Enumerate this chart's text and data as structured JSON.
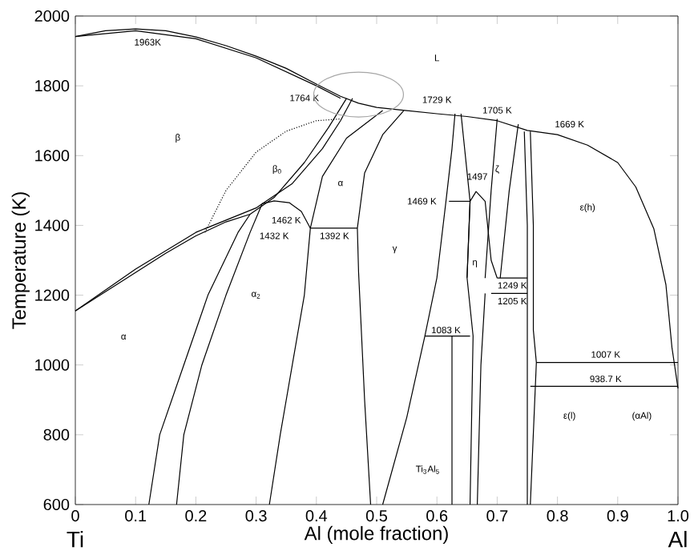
{
  "chart_data": {
    "type": "line",
    "xlabel": "Al (mole fraction)",
    "ylabel": "Temperature (K)",
    "xlim": [
      0,
      1
    ],
    "ylim": [
      600,
      2000
    ],
    "xticks": [
      0,
      0.1,
      0.2,
      0.3,
      0.4,
      0.5,
      0.6,
      0.7,
      0.8,
      0.9,
      {
        "value": 1,
        "label": "1.0"
      }
    ],
    "yticks": [
      600,
      800,
      1000,
      1200,
      1400,
      1600,
      1800,
      2000
    ],
    "marker": "none",
    "line_style": "solid",
    "grid": false,
    "legend": false,
    "series": [
      {
        "color": "#000000",
        "x": [
          0,
          0.05,
          0.1,
          0.15,
          0.2,
          0.25,
          0.3,
          0.35,
          0.4,
          0.44,
          0.47,
          0.5,
          0.55,
          0.6,
          0.65,
          0.7,
          0.75,
          0.8,
          0.85,
          0.9,
          0.93,
          0.96,
          0.98,
          0.99,
          1.0
        ],
        "values": [
          1941,
          1958,
          1963,
          1958,
          1940,
          1915,
          1885,
          1850,
          1805,
          1770,
          1750,
          1738,
          1729,
          1720,
          1712,
          1700,
          1672,
          1660,
          1630,
          1580,
          1510,
          1390,
          1230,
          1050,
          933
        ]
      },
      {
        "color": "#000000",
        "x": [
          0,
          0.1,
          0.2,
          0.3,
          0.4,
          0.44
        ],
        "values": [
          1941,
          1958,
          1935,
          1880,
          1800,
          1764
        ]
      },
      {
        "color": "#000000",
        "line_style": "dotted",
        "x": [
          0.215,
          0.25,
          0.3,
          0.35,
          0.4,
          0.44
        ],
        "values": [
          1380,
          1500,
          1610,
          1670,
          1700,
          1705
        ]
      },
      {
        "color": "#000000",
        "x": [
          0,
          0.05,
          0.1,
          0.15,
          0.2,
          0.25,
          0.29,
          0.33,
          0.38,
          0.42,
          0.45
        ],
        "values": [
          1155,
          1210,
          1265,
          1320,
          1370,
          1410,
          1432,
          1480,
          1580,
          1680,
          1764
        ]
      },
      {
        "color": "#000000",
        "x": [
          0,
          0.1,
          0.2,
          0.3,
          0.31,
          0.36,
          0.41,
          0.44,
          0.46
        ],
        "values": [
          1155,
          1275,
          1380,
          1450,
          1462,
          1520,
          1620,
          1700,
          1764
        ]
      },
      {
        "color": "#000000",
        "x": [
          0.122,
          0.14,
          0.18,
          0.22,
          0.27,
          0.29
        ],
        "values": [
          600,
          800,
          1000,
          1200,
          1380,
          1432
        ]
      },
      {
        "color": "#000000",
        "x": [
          0.168,
          0.18,
          0.21,
          0.25,
          0.29,
          0.31,
          0.33,
          0.355,
          0.375,
          0.39
        ],
        "values": [
          600,
          800,
          1000,
          1200,
          1380,
          1462,
          1470,
          1465,
          1440,
          1392
        ]
      },
      {
        "color": "#000000",
        "x": [
          0.322,
          0.34,
          0.36,
          0.38,
          0.39,
          0.41,
          0.45,
          0.51
        ],
        "values": [
          600,
          800,
          1000,
          1200,
          1392,
          1540,
          1650,
          1729
        ]
      },
      {
        "color": "#000000",
        "x": [
          0.49,
          0.48,
          0.47,
          0.468,
          0.48,
          0.51,
          0.545
        ],
        "values": [
          600,
          900,
          1266,
          1392,
          1550,
          1660,
          1729
        ]
      },
      {
        "color": "#000000",
        "x": [
          0.51,
          0.55,
          0.58,
          0.6,
          0.615,
          0.625,
          0.63
        ],
        "values": [
          600,
          850,
          1083,
          1250,
          1469,
          1620,
          1720
        ]
      },
      {
        "color": "#000000",
        "x": [
          0.39,
          0.468
        ],
        "values": [
          1392,
          1392
        ]
      },
      {
        "color": "#000000",
        "x": [
          0.625,
          0.625
        ],
        "values": [
          600,
          1083
        ]
      },
      {
        "color": "#000000",
        "x": [
          0.58,
          0.655
        ],
        "values": [
          1083,
          1083
        ]
      },
      {
        "color": "#000000",
        "x": [
          0.65,
          0.655,
          0.665,
          0.68,
          0.69,
          0.7
        ],
        "values": [
          1250,
          1469,
          1497,
          1469,
          1300,
          1249
        ]
      },
      {
        "color": "#000000",
        "x": [
          0.62,
          0.655
        ],
        "values": [
          1469,
          1469
        ]
      },
      {
        "color": "#000000",
        "x": [
          0.655,
          0.66,
          0.65,
          0.655,
          0.64
        ],
        "values": [
          600,
          1083,
          1250,
          1469,
          1720
        ]
      },
      {
        "color": "#000000",
        "x": [
          0.667,
          0.673,
          0.68
        ],
        "values": [
          600,
          1000,
          1205
        ]
      },
      {
        "color": "#000000",
        "x": [
          0.7,
          0.69,
          0.68
        ],
        "values": [
          1705,
          1500,
          1249
        ]
      },
      {
        "color": "#000000",
        "x": [
          0.735,
          0.72,
          0.705
        ],
        "values": [
          1690,
          1500,
          1249
        ]
      },
      {
        "color": "#000000",
        "x": [
          0.7,
          0.75
        ],
        "values": [
          1249,
          1249
        ]
      },
      {
        "color": "#000000",
        "x": [
          0.69,
          0.75
        ],
        "values": [
          1205,
          1205
        ]
      },
      {
        "color": "#000000",
        "x": [
          0.745,
          0.75,
          0.75
        ],
        "values": [
          1669,
          1400,
          600
        ]
      },
      {
        "color": "#000000",
        "x": [
          0.755,
          0.76,
          0.76,
          0.765,
          0.755
        ],
        "values": [
          1669,
          1400,
          1100,
          1007,
          600
        ]
      },
      {
        "color": "#000000",
        "x": [
          0.765,
          1.0
        ],
        "values": [
          1007,
          1007
        ]
      },
      {
        "color": "#000000",
        "x": [
          0.755,
          1.0
        ],
        "values": [
          938.7,
          938.7
        ]
      }
    ],
    "annotations": [
      "Ti",
      "Al",
      "1963K",
      "1764 K",
      "1729 K",
      "1705 K",
      "1669 K",
      "1497",
      "1469 K",
      "1462 K",
      "1432 K",
      "1392 K",
      "1249 K",
      "1205 K",
      "1083 K",
      "1007 K",
      "938.7 K",
      "L",
      "β",
      "β$_{0}$",
      "α",
      "α",
      "α$_{2}$",
      "γ",
      "ζ",
      "η",
      "ε(h)",
      "ε(l)",
      "(αAl)",
      "Ti$_{3}$Al$_{5}$"
    ]
  }
}
